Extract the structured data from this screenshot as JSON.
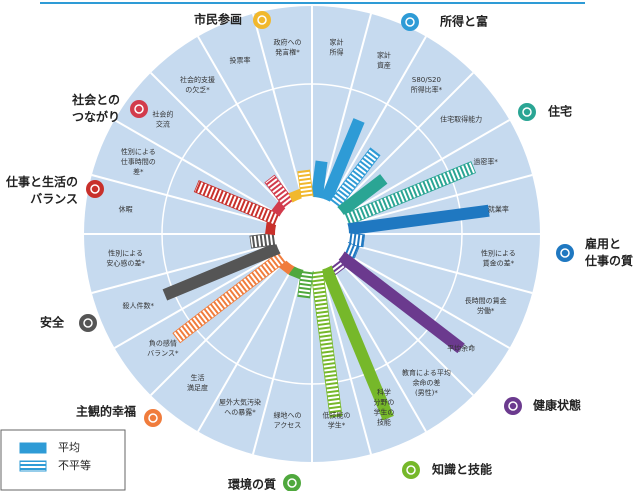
{
  "chart_data": {
    "type": "radial_bar",
    "rlim": [
      0,
      100
    ],
    "legend": [
      "平均",
      "不平等"
    ],
    "groups": [
      {
        "name": [
          "所得と富"
        ],
        "color": "#2e9bd6",
        "indicators": [
          {
            "label": [
              "家計",
              "所得"
            ],
            "inequality": false,
            "value": 19
          },
          {
            "label": [
              "家計",
              "資産"
            ],
            "inequality": false,
            "value": 45
          },
          {
            "label": [
              "S80/S20",
              "所得比率*"
            ],
            "inequality": true,
            "value": 35
          }
        ]
      },
      {
        "name": [
          "住宅"
        ],
        "color": "#2aa594",
        "indicators": [
          {
            "label": [
              "住宅取得能力"
            ],
            "inequality": false,
            "value": 28
          },
          {
            "label": [
              "過密率*"
            ],
            "inequality": true,
            "value": 72
          }
        ]
      },
      {
        "name": [
          "雇用と",
          "仕事の質"
        ],
        "color": "#1f78c1",
        "indicators": [
          {
            "label": [
              "就業率"
            ],
            "inequality": false,
            "value": 74
          },
          {
            "label": [
              "性別による",
              "賃金の差*"
            ],
            "inequality": true,
            "value": 8
          },
          {
            "label": [
              "長時間の賃金",
              "労働*"
            ],
            "inequality": true,
            "value": 6
          }
        ]
      },
      {
        "name": [
          "健康状態"
        ],
        "color": "#6b3a8e",
        "indicators": [
          {
            "label": [
              "平均余命"
            ],
            "inequality": false,
            "value": 79
          },
          {
            "label": [
              "教育による平均",
              "余命の差",
              "(男性)*"
            ],
            "inequality": true,
            "value": 5
          }
        ]
      },
      {
        "name": [
          "知識と技能"
        ],
        "color": "#76b82a",
        "indicators": [
          {
            "label": [
              "科学",
              "分野の",
              "学生の",
              "技能"
            ],
            "inequality": false,
            "value": 85
          },
          {
            "label": [
              "低技能の",
              "学生*"
            ],
            "inequality": true,
            "value": 77
          }
        ]
      },
      {
        "name": [
          "環境の質"
        ],
        "color": "#4fa83d",
        "indicators": [
          {
            "label": [
              "緑地への",
              "アクセス"
            ],
            "inequality": true,
            "value": 14
          },
          {
            "label": [
              "屋外大気汚染",
              "への暴露*"
            ],
            "inequality": false,
            "value": 5
          }
        ]
      },
      {
        "name": [
          "主観的幸福"
        ],
        "color": "#f07c3c",
        "indicators": [
          {
            "label": [
              "生活",
              "満足度"
            ],
            "inequality": false,
            "value": 5
          },
          {
            "label": [
              "負の感情",
              "バランス*"
            ],
            "inequality": true,
            "value": 70
          }
        ]
      },
      {
        "name": [
          "安全"
        ],
        "color": "#555555",
        "indicators": [
          {
            "label": [
              "殺人件数*"
            ],
            "inequality": false,
            "value": 64
          },
          {
            "label": [
              "性別による",
              "安心感の差*"
            ],
            "inequality": true,
            "value": 13
          }
        ]
      },
      {
        "name": [
          "仕事と生活の",
          "バランス"
        ],
        "color": "#c8302b",
        "indicators": [
          {
            "label": [
              "休暇"
            ],
            "inequality": false,
            "value": 5
          },
          {
            "label": [
              "性別による",
              "仕事時間の",
              "差*"
            ],
            "inequality": true,
            "value": 46
          }
        ]
      },
      {
        "name": [
          "社会との",
          "つながり"
        ],
        "color": "#d23b4c",
        "indicators": [
          {
            "label": [
              "社会的",
              "交流"
            ],
            "inequality": false,
            "value": 5
          },
          {
            "label": [
              "社会的支援",
              "の欠乏*"
            ],
            "inequality": true,
            "value": 17
          }
        ]
      },
      {
        "name": [
          "市民参画"
        ],
        "color": "#f1b82d",
        "indicators": [
          {
            "label": [
              "投票率"
            ],
            "inequality": false,
            "value": 5
          },
          {
            "label": [
              "政府への",
              "発言権*"
            ],
            "inequality": true,
            "value": 14
          }
        ]
      }
    ]
  }
}
